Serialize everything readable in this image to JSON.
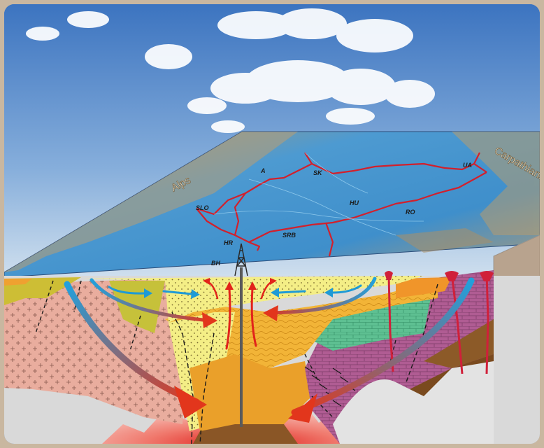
{
  "map_labels": {
    "alps": "Alps",
    "carpathians": "Carpathians",
    "a": "A",
    "sk": "SK",
    "ua": "UA",
    "slo": "SLO",
    "hu": "HU",
    "ro": "RO",
    "hr": "HR",
    "srb": "SRB",
    "bh": "BH"
  },
  "colors": {
    "sky_top": "#3f78c2",
    "sky_bottom": "#d8e6f2",
    "basin_water": "#4f9bd0",
    "sediment_light": "#f3ec7a",
    "sediment_orange": "#f0b02e",
    "basement_pink": "#e6a898",
    "basement_purple": "#a8508a",
    "green_layer": "#5bbf8e",
    "brown_layer": "#7a4a1e",
    "hot_zone": "#e2231a",
    "cold_arrow": "#1e9ad6",
    "warm_arrow": "#e2361c"
  },
  "icons": {
    "well": "drilling-rig-icon"
  }
}
